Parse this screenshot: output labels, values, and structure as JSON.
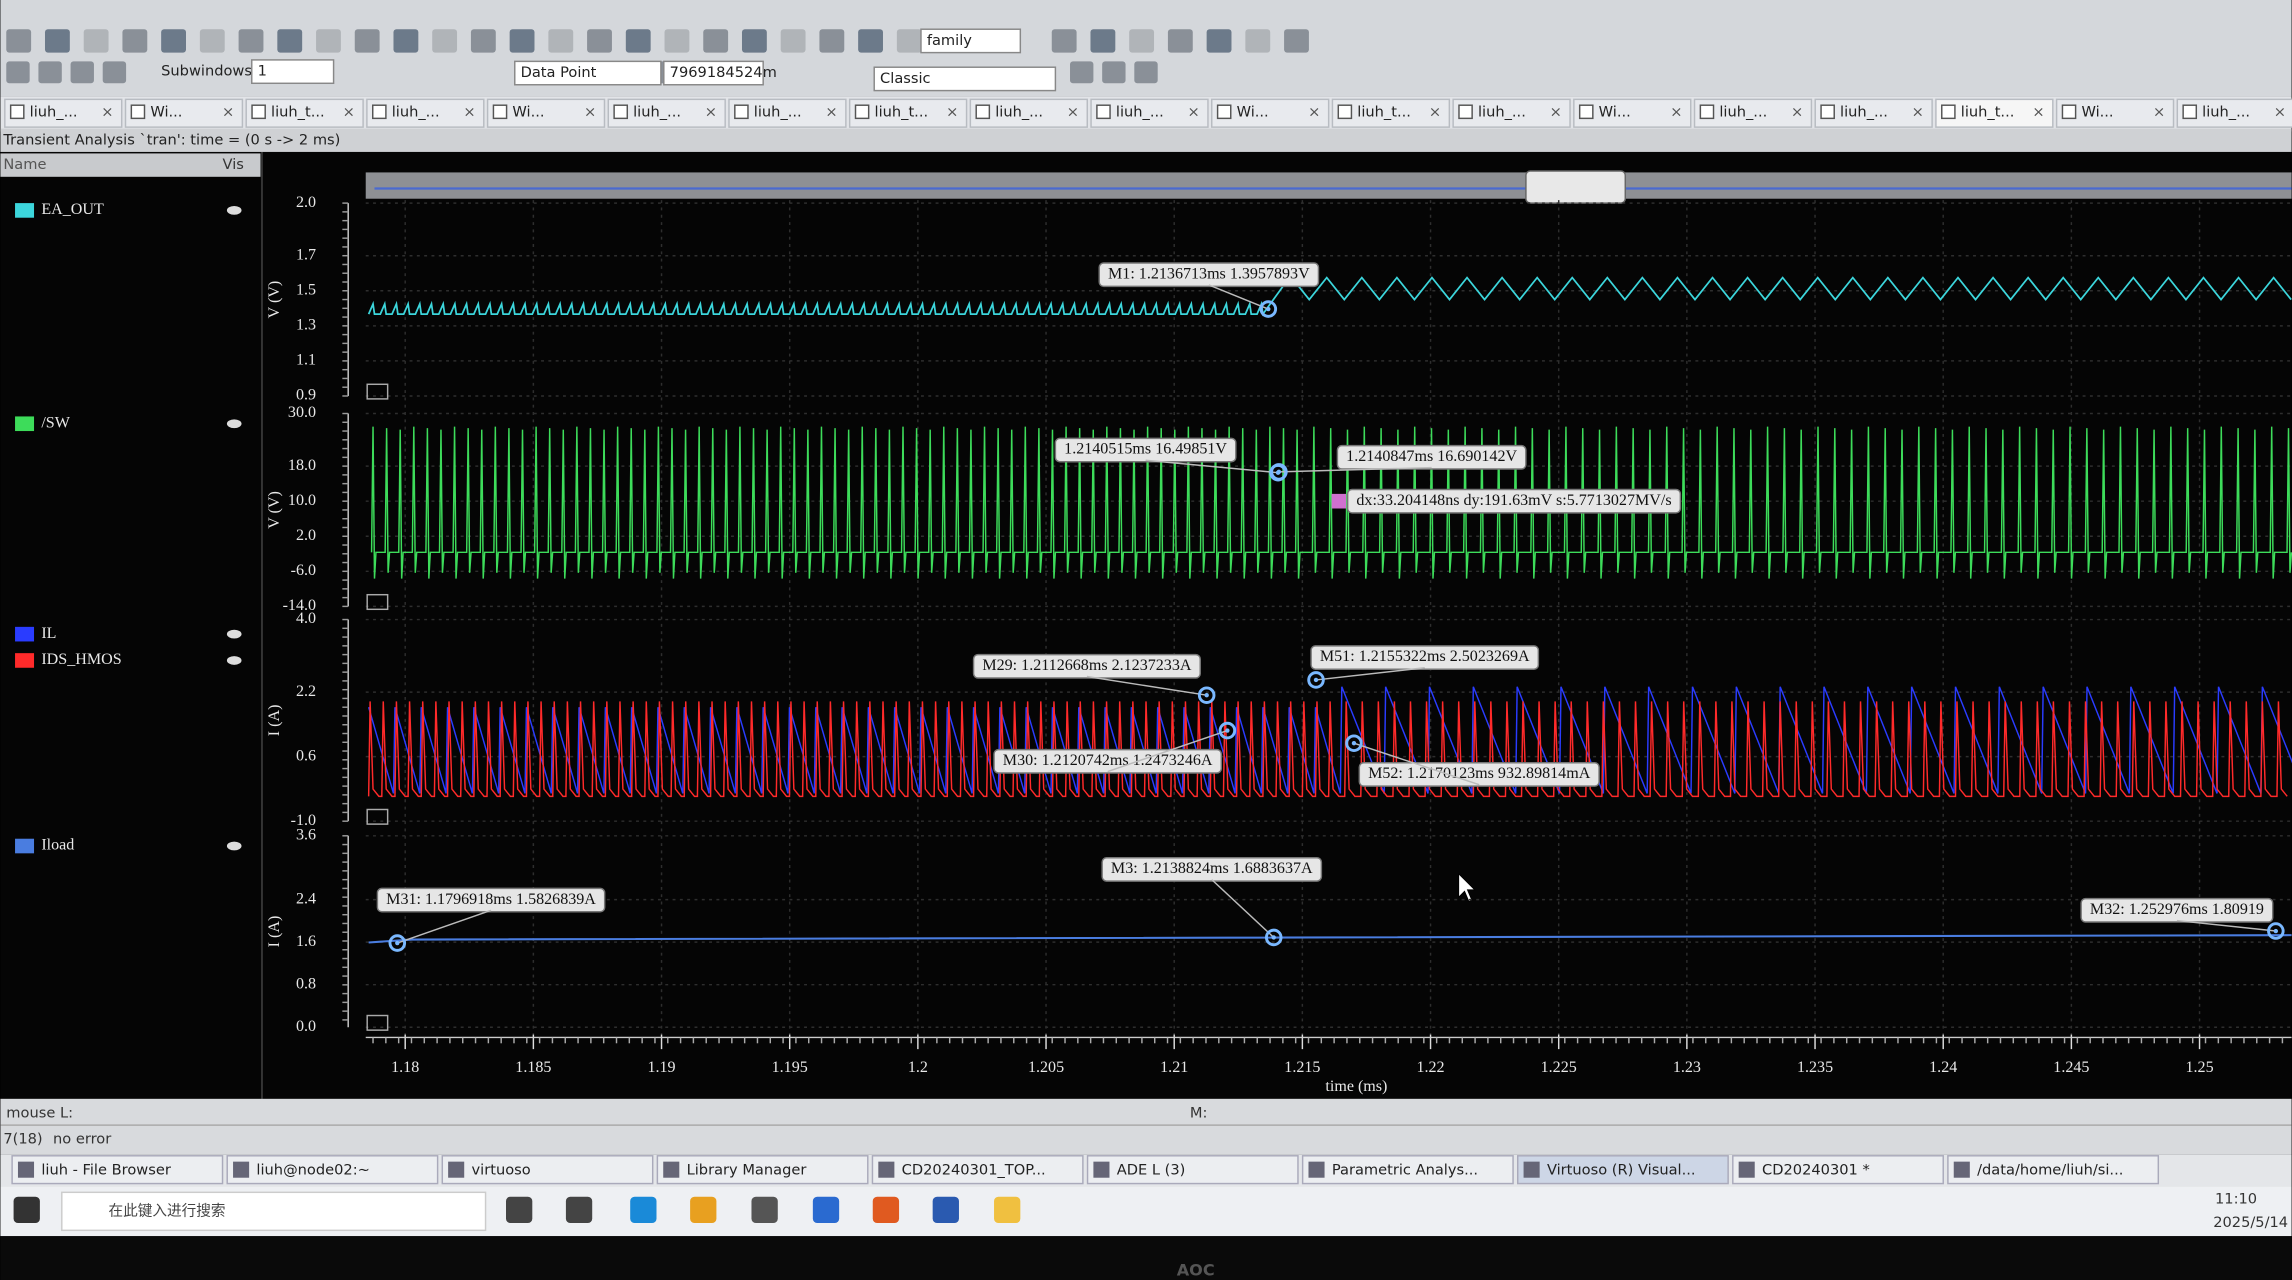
{
  "toolbar": {
    "family": "family",
    "subwindows_label": "Subwindows:",
    "subwindows": "1",
    "data_point": "Data Point",
    "coordinate": "7969184524m",
    "style": "Classic"
  },
  "tabs": [
    "liuh_...",
    "Wi...",
    "liuh_t...",
    "liuh_...",
    "Wi...",
    "liuh_...",
    "liuh_...",
    "liuh_t...",
    "liuh_...",
    "liuh_...",
    "Wi...",
    "liuh_t...",
    "liuh_...",
    "Wi...",
    "liuh_...",
    "liuh_...",
    "liuh_t...",
    "Wi...",
    "liuh_..."
  ],
  "window_title": "Transient Analysis `tran': time = (0 s -> 2 ms)",
  "signal_list": {
    "name_header": "Name",
    "vis_header": "Vis"
  },
  "waveform_window": {
    "xlabel": "time (ms)",
    "xlim": [
      1.17846,
      1.25359
    ],
    "xticks": [
      1.18,
      1.185,
      1.19,
      1.195,
      1.2,
      1.205,
      1.21,
      1.215,
      1.22,
      1.225,
      1.23,
      1.235,
      1.24,
      1.245,
      1.25
    ],
    "panes": [
      {
        "ylabel": "V (V)",
        "ylim": [
          0.9,
          2.0
        ],
        "yticks": [
          {
            "value": 2,
            "label": "2.0"
          },
          1.7,
          1.5,
          1.3,
          1.1,
          0.9
        ],
        "signals": [
          {
            "name": "EA_OUT",
            "color": "#3cd6dc"
          }
        ],
        "markers": [
          {
            "label": "M1: 1.2136713ms 1.3957893V",
            "x": 1.2136713,
            "y": 1.3957893
          }
        ]
      },
      {
        "ylabel": "V (V)",
        "ylim": [
          -14,
          30
        ],
        "yticks": [
          {
            "value": 30,
            "label": "30.0"
          },
          {
            "value": 18,
            "label": "18.0"
          },
          {
            "value": 10,
            "label": "10.0"
          },
          {
            "value": 2,
            "label": "2.0"
          },
          {
            "value": -6,
            "label": "-6.0"
          },
          {
            "value": -14,
            "label": "-14.0"
          }
        ],
        "signals": [
          {
            "name": "/SW",
            "color": "#3ddc5a"
          }
        ],
        "markers": [
          {
            "label": "1.2140515ms 16.49851V",
            "x": 1.2140515,
            "y": 16.49851
          },
          {
            "label": "1.2140847ms 16.690142V",
            "x": 1.2140847,
            "y": 16.690142
          }
        ],
        "delta": "dx:33.204148ns dy:191.63mV s:5.7713027MV/s"
      },
      {
        "ylabel": "I (A)",
        "ylim": [
          -1,
          4
        ],
        "yticks": [
          {
            "value": 4,
            "label": "4.0"
          },
          2.2,
          0.6,
          {
            "value": -1,
            "label": "-1.0"
          }
        ],
        "signals": [
          {
            "name": "IL",
            "color": "#2a3cff"
          },
          {
            "name": "IDS_HMOS",
            "color": "#ff2a2a"
          }
        ],
        "markers": [
          {
            "label": "M29: 1.2112668ms 2.1237233A",
            "x": 1.2112668,
            "y": 2.1237233
          },
          {
            "label": "M30: 1.2120742ms 1.2473246A",
            "x": 1.2120742,
            "y": 1.2473246
          },
          {
            "label": "M51: 1.2155322ms 2.5023269A",
            "x": 1.2155322,
            "y": 2.5023269
          },
          {
            "label": "M52: 1.2170123ms 932.89814mA",
            "x": 1.2170123,
            "y": 0.93289814
          }
        ]
      },
      {
        "ylabel": "I (A)",
        "ylim": [
          0,
          3.6
        ],
        "yticks": [
          3.6,
          2.4,
          1.6,
          0.8,
          {
            "value": 0,
            "label": "0.0"
          }
        ],
        "signals": [
          {
            "name": "Iload",
            "color": "#4a7de0"
          }
        ],
        "markers": [
          {
            "label": "M31: 1.1796918ms 1.5826839A",
            "x": 1.1796918,
            "y": 1.5826839
          },
          {
            "label": "M3: 1.2138824ms 1.6883637A",
            "x": 1.2138824,
            "y": 1.6883637
          },
          {
            "label": "M32: 1.252976ms 1.80919",
            "x": 1.252976,
            "y": 1.80919
          }
        ]
      }
    ]
  },
  "status": {
    "mouse": "mouse L:",
    "middle": "M:",
    "count": "7(18)",
    "message": "no error"
  },
  "apps": [
    "liuh - File Browser",
    "liuh@node02:~",
    "virtuoso",
    "Library Manager",
    "CD20240301_TOP...",
    "ADE L (3)",
    "Parametric Analys...",
    "Virtuoso (R) Visual...",
    "CD20240301 *",
    "/data/home/liuh/si..."
  ],
  "taskbar": {
    "search": "在此键入进行搜索",
    "time": "11:10",
    "date": "2025/5/14"
  },
  "monitor_brand": "AOC"
}
